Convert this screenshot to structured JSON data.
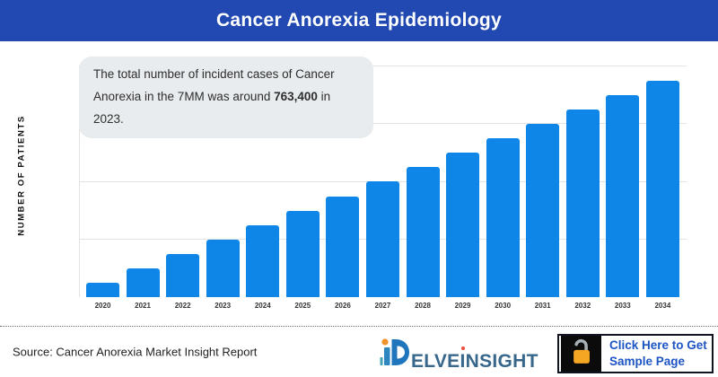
{
  "header": {
    "title": "Cancer Anorexia Epidemiology"
  },
  "annotation": {
    "text_before": "The total number of incident cases of Cancer Anorexia in the 7MM was around ",
    "highlight": "763,400",
    "text_after": " in 2023."
  },
  "chart_data": {
    "type": "bar",
    "title": "Cancer Anorexia Epidemiology",
    "ylabel": "NUMBER OF PATIENTS",
    "xlabel": "",
    "categories": [
      "2020",
      "2021",
      "2022",
      "2023",
      "2024",
      "2025",
      "2026",
      "2027",
      "2028",
      "2029",
      "2030",
      "2031",
      "2032",
      "2033",
      "2034"
    ],
    "values": [
      191000,
      382000,
      573000,
      763400,
      954000,
      1145000,
      1336000,
      1527000,
      1718000,
      1909000,
      2099000,
      2290000,
      2481000,
      2672000,
      2863000
    ],
    "ylim": [
      0,
      3053600
    ],
    "gridline_values": [
      763400,
      1526800,
      2290200,
      3053600
    ],
    "bar_color": "#0d86e8",
    "grid": "horizontal only",
    "legend": "none"
  },
  "footer": {
    "source": "Source: Cancer Anorexia Market Insight Report",
    "logo": {
      "mark": "delveinsight-d-mark",
      "text_part1": "ELVE",
      "dotted_i": "I",
      "text_part2": "NSIGHT"
    },
    "cta": {
      "line1": "Click Here to Get",
      "line2": "Sample Page"
    }
  },
  "colors": {
    "header_bg": "#2149b1",
    "bar": "#0d86e8",
    "annotation_bg": "#e8ecee",
    "gridline": "#e3e3e3",
    "cta_text": "#1d55c3",
    "cta_border": "#10141f",
    "lock_body": "#f5a623",
    "lock_shackle": "#a7aeb4",
    "logo_blue": "#2076bc",
    "logo_text": "#38678c",
    "logo_dot_orange": "#f0932b",
    "logo_idot_red": "#e8503a"
  }
}
